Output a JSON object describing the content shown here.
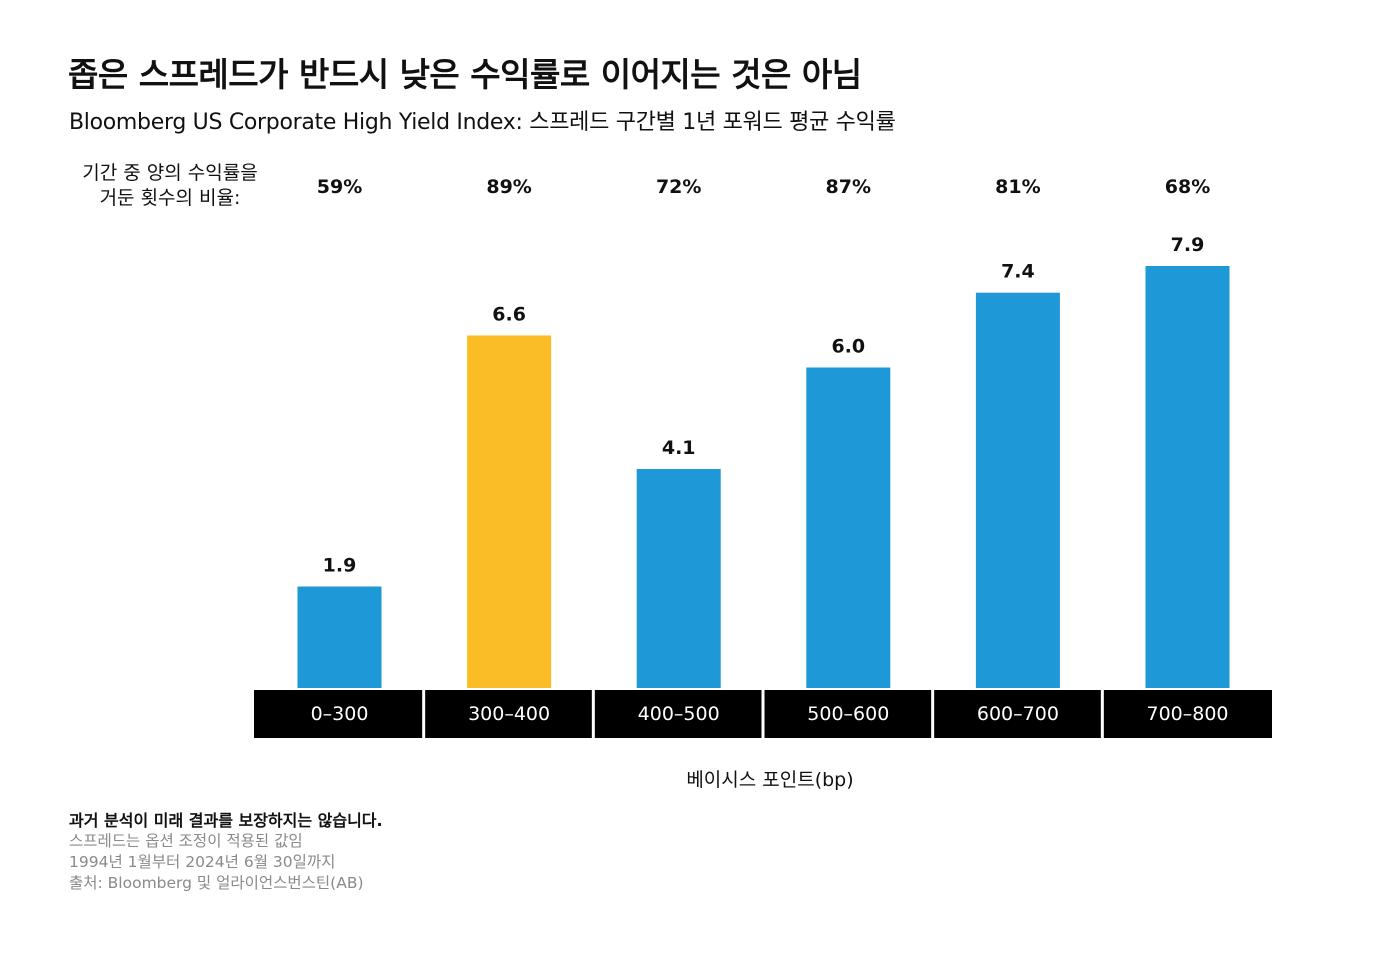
{
  "title": "좁은 스프레드가 반드시 낮은 수익률로 이어지는 것은 아님",
  "subtitle": "Bloomberg US Corporate High Yield Index: 스프레드 구간별 1년 포워드 평균 수익률",
  "positive_label": {
    "line1": "기간 중 양의 수익률을",
    "line2": "거둔 횟수의 비율:"
  },
  "chart_data": {
    "type": "bar",
    "categories": [
      "0–300",
      "300–400",
      "400–500",
      "500–600",
      "600–700",
      "700–800"
    ],
    "values": [
      1.9,
      6.6,
      4.1,
      6.0,
      7.4,
      7.9
    ],
    "value_labels": [
      "1.9",
      "6.6",
      "4.1",
      "6.0",
      "7.4",
      "7.9"
    ],
    "positive_pct": [
      "59%",
      "89%",
      "72%",
      "87%",
      "81%",
      "68%"
    ],
    "highlight_index": 1,
    "xlabel": "베이시스 포인트(bp)",
    "ylabel": "",
    "ylim": [
      0,
      7.9
    ],
    "grid": false,
    "colors": {
      "bar": "#1e98d6",
      "highlight": "#fbbd26",
      "category_bg": "#000000",
      "category_text": "#ffffff",
      "label_text": "#111111"
    }
  },
  "footnotes": {
    "disclaimer": "과거 분석이 미래 결과를 보장하지는 않습니다.",
    "line1": "스프레드는 옵션 조정이 적용된 값임",
    "line2": "1994년 1월부터 2024년 6월 30일까지",
    "line3": "출처: Bloomberg 및 얼라이언스번스틴(AB)"
  }
}
